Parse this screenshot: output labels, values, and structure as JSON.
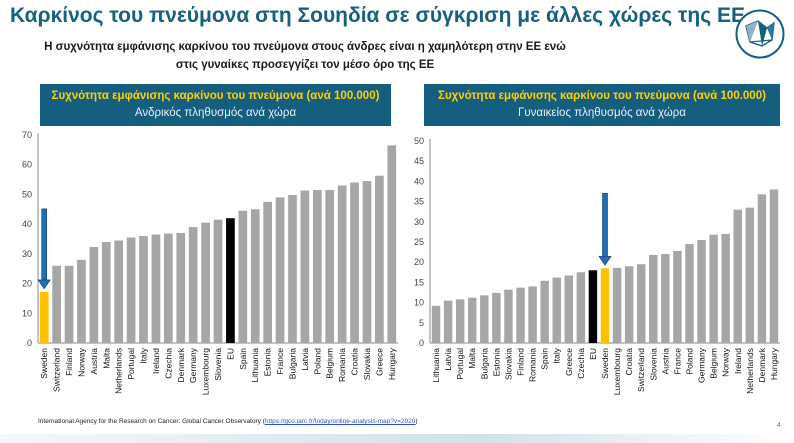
{
  "title": "Καρκίνος του πνεύμονα στη Σουηδία σε σύγκριση με άλλες χώρες της ΕΕ",
  "subtitle_line1": "Η συχνότητα εμφάνισης καρκίνου του πνεύμονα στους άνδρες είναι η χαμηλότερη στην ΕΕ ενώ",
  "subtitle_line2": "στις γυναίκες προσεγγίζει τον μέσο όρο της ΕΕ",
  "colors": {
    "header_bg": "#165e80",
    "header_title": "#ffd000",
    "bar": "#a6a6a6",
    "highlight": "#ffc000",
    "eu": "#000000",
    "arrow": "#1f6fb2"
  },
  "footer": {
    "source": "International Agency for the Research on Cancer: Global Cancer Observatory (",
    "link": "https://gco.iarc.fr/today/online-analysis-map?v=2020",
    "close": ")"
  },
  "page_number": "4",
  "chart_data": [
    {
      "type": "bar",
      "header_title": "Συχνότητα εμφάνισης καρκίνου του πνεύμονα (ανά 100.000)",
      "header_subtitle": "Ανδρικός πληθυσμός ανά χώρα",
      "ylim": [
        0,
        70
      ],
      "yticks": [
        0,
        10,
        20,
        30,
        40,
        50,
        60,
        70
      ],
      "grid": false,
      "categories": [
        "Sweden",
        "Switzerland",
        "Finland",
        "Norway",
        "Austria",
        "Malta",
        "Netherlands",
        "Portugal",
        "Italy",
        "Ireland",
        "Czechia",
        "Denmark",
        "Germany",
        "Luxembourg",
        "Slovenia",
        "EU",
        "Spain",
        "Lithuania",
        "Estonia",
        "France",
        "Bulgaria",
        "Latvia",
        "Poland",
        "Belgium",
        "Romania",
        "Croatia",
        "Slovakia",
        "Greece",
        "Hungary"
      ],
      "values": [
        17.2,
        26,
        26,
        28,
        32.3,
        34,
        34.5,
        35.5,
        36,
        36.5,
        36.8,
        37,
        39,
        40.5,
        41.5,
        42,
        44.5,
        45,
        47.5,
        49,
        49.8,
        51.3,
        51.5,
        51.5,
        53,
        54,
        54.5,
        56.3,
        66.5
      ],
      "highlight": "Sweden",
      "reference": "EU"
    },
    {
      "type": "bar",
      "header_title": "Συχνότητα εμφάνισης καρκίνου του πνεύμονα (ανά 100.000)",
      "header_subtitle": "Γυναικείος πληθυσμός ανά χώρα",
      "ylim": [
        0,
        50
      ],
      "yticks": [
        0,
        5,
        10,
        15,
        20,
        25,
        30,
        35,
        40,
        45,
        50
      ],
      "grid": false,
      "categories": [
        "Lithuania",
        "Latvia",
        "Portugal",
        "Malta",
        "Bulgaria",
        "Estonia",
        "Slovakia",
        "Finland",
        "Romania",
        "Spain",
        "Italy",
        "Greece",
        "Czechia",
        "EU",
        "Sweden",
        "Luxembourg",
        "Croatia",
        "Switzerland",
        "Slovenia",
        "Austria",
        "France",
        "Poland",
        "Germany",
        "Belgium",
        "Norway",
        "Ireland",
        "Netherlands",
        "Denmark",
        "Hungary"
      ],
      "values": [
        9.2,
        10.5,
        10.8,
        11.2,
        11.8,
        12.4,
        13.2,
        13.7,
        14,
        15.4,
        16.2,
        16.7,
        17.5,
        18,
        18.5,
        18.6,
        19,
        19.5,
        21.8,
        22,
        22.8,
        24.5,
        25.5,
        26.8,
        27,
        33,
        33.5,
        36.8,
        38
      ],
      "highlight": "Sweden",
      "reference": "EU"
    }
  ]
}
